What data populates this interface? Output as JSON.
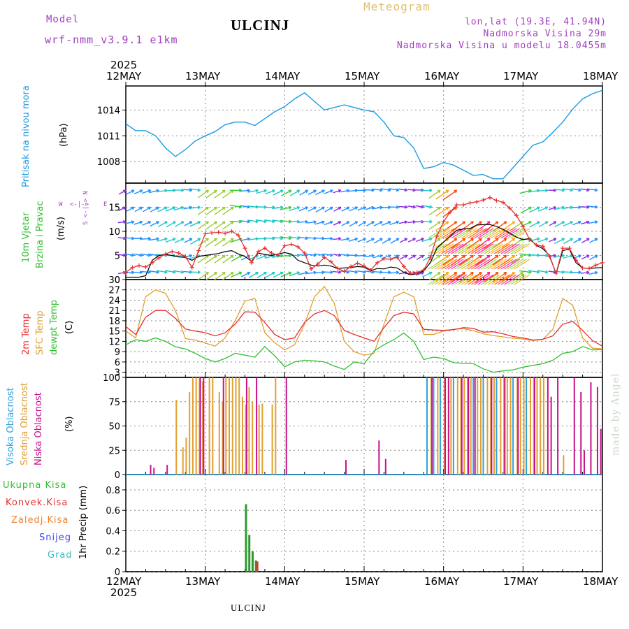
{
  "header": {
    "model_label": "Model",
    "model_name": "wrf-nmm_v3.9.1 e1km",
    "station": "ULCINJ",
    "meteogram": "Meteogram",
    "lonlat": "lon,lat (19.3E, 41.94N)",
    "altitude": "Nadmorska Visina 29m",
    "model_altitude": "Nadmorska Visina u modelu 18.0455m"
  },
  "footer": {
    "station": "ULCINJ"
  },
  "watermark": "made by Angel",
  "wind_legend": {
    "n": "N",
    "s": "S",
    "e": "E",
    "w": "W",
    "arrow_label": "W <-|-> E",
    "ns_label": "S <-|-> N"
  },
  "time_axis": {
    "year": "2025",
    "dates": [
      "12MAY",
      "13MAY",
      "14MAY",
      "15MAY",
      "16MAY",
      "17MAY",
      "18MAY"
    ]
  },
  "colors": {
    "pressure": "#1e9be0",
    "wind_speed": "#e83030",
    "temp2m": "#e83030",
    "sfc_temp": "#e0a030",
    "dewpt": "#30c030",
    "high_cloud": "#30a0e0",
    "mid_cloud": "#e0a030",
    "low_cloud": "#c8108c",
    "total_precip": "#2e9a2e",
    "conv_precip": "#e03030",
    "frozen": "#f08030",
    "snow": "#4040ff",
    "hail": "#30c0c0",
    "header_purple": "#a040c0",
    "header_gold": "#e0c070"
  },
  "panels": {
    "pressure": {
      "ylabel_main": "Pritisak na nivou mora",
      "ylabel_unit": "(hPa)"
    },
    "wind": {
      "ylabel_main": "10m Vjetar",
      "ylabel_sub": "Brzina i Pravac",
      "ylabel_unit": "(m/s)"
    },
    "temp": {
      "ylabel_1": "2m Temp",
      "ylabel_2": "SFC Temp",
      "ylabel_3": "dewpt Temp",
      "ylabel_unit": "(C)"
    },
    "cloud": {
      "ylabel_1": "Visoka Oblacnost",
      "ylabel_2": "Srednja Oblacnost",
      "ylabel_3": "Niska Oblacnost",
      "ylabel_unit": "(%)"
    },
    "precip": {
      "legend": [
        "Ukupna Kisa",
        "Konvek.Kisa",
        "Zaledj.Kisa",
        "Snijeg",
        "Grad"
      ],
      "ylabel": "1hr Precip (mm)"
    }
  },
  "chart_data": [
    {
      "type": "line",
      "name": "pressure",
      "ylabel": "(hPa)",
      "ylim": [
        1005.5,
        1016.8
      ],
      "yticks": [
        1008,
        1011,
        1014
      ],
      "x_hours": [
        0,
        3,
        6,
        9,
        12,
        15,
        18,
        21,
        24,
        27,
        30,
        33,
        36,
        39,
        42,
        45,
        48,
        51,
        54,
        57,
        60,
        63,
        66,
        69,
        72,
        75,
        78,
        81,
        84,
        87,
        90,
        93,
        96,
        99,
        102,
        105,
        108,
        111,
        114,
        117,
        120,
        123,
        126,
        129,
        132,
        135,
        138,
        141,
        144
      ],
      "series": [
        {
          "values": [
            1012.4,
            1011.6,
            1011.6,
            1011.0,
            1009.6,
            1008.6,
            1009.4,
            1010.4,
            1011.0,
            1011.5,
            1012.3,
            1012.6,
            1012.6,
            1012.2,
            1013.0,
            1013.8,
            1014.4,
            1015.3,
            1016.0,
            1015.0,
            1014.0,
            1014.3,
            1014.6,
            1014.3,
            1014.0,
            1013.8,
            1012.6,
            1011.0,
            1010.8,
            1009.6,
            1007.2,
            1007.4,
            1007.9,
            1007.6,
            1007.0,
            1006.4,
            1006.5,
            1006.0,
            1006.0,
            1007.3,
            1008.6,
            1009.9,
            1010.3,
            1011.4,
            1012.6,
            1014.1,
            1015.3,
            1015.9,
            1016.3
          ]
        }
      ]
    },
    {
      "type": "line",
      "name": "wind",
      "ylabel": "(m/s)",
      "ylim": [
        0,
        20
      ],
      "yticks": [
        0,
        5,
        10,
        15
      ],
      "x_hours": [
        0,
        2,
        4,
        6,
        8,
        10,
        12,
        14,
        16,
        18,
        20,
        22,
        24,
        26,
        28,
        30,
        32,
        34,
        36,
        38,
        40,
        42,
        44,
        46,
        48,
        50,
        52,
        54,
        56,
        58,
        60,
        62,
        64,
        66,
        68,
        70,
        72,
        74,
        76,
        78,
        80,
        82,
        84,
        86,
        88,
        90,
        92,
        94,
        96,
        98,
        100,
        102,
        104,
        106,
        108,
        110,
        112,
        114,
        116,
        118,
        120,
        122,
        124,
        126,
        128,
        130,
        132,
        134,
        136,
        138,
        140,
        142,
        144
      ],
      "series": [
        {
          "values": [
            1.5,
            2.5,
            2.9,
            2.6,
            3.5,
            4.5,
            5.3,
            5.8,
            5.5,
            4.8,
            2.5,
            6.0,
            9.5,
            9.7,
            9.8,
            9.6,
            10.0,
            9.2,
            6.5,
            3.5,
            5.8,
            6.5,
            5.5,
            5.0,
            7.0,
            7.3,
            6.8,
            5.5,
            2.2,
            3.2,
            4.6,
            3.7,
            2.3,
            1.7,
            2.7,
            3.4,
            2.8,
            2.0,
            3.5,
            4.3,
            4.2,
            4.6,
            2.7,
            1.3,
            1.5,
            2.0,
            4.5,
            9.0,
            12.0,
            14.0,
            15.5,
            15.5,
            15.9,
            16.1,
            16.5,
            17.0,
            16.4,
            16.0,
            14.8,
            13.3,
            11.0,
            8.3,
            7.2,
            6.9,
            4.8,
            1.3,
            6.5,
            6.5,
            4.0,
            2.4,
            2.3,
            3.0,
            3.5
          ]
        },
        {
          "values": [
            0.5,
            0.5,
            0.5,
            0.8,
            4.0,
            5.0,
            5.2,
            5.0,
            4.7,
            4.6,
            4.0,
            4.8,
            5.0,
            5.2,
            5.4,
            5.8,
            6.0,
            5.3,
            4.8,
            3.8,
            5.5,
            5.2,
            5.0,
            5.3,
            5.6,
            5.3,
            4.0,
            3.5,
            3.0,
            2.8,
            3.0,
            2.8,
            2.3,
            2.4,
            2.5,
            2.7,
            2.6,
            1.8,
            2.3,
            2.2,
            2.6,
            2.4,
            1.5,
            1.0,
            1.2,
            1.8,
            3.5,
            6.5,
            7.8,
            9.0,
            10.2,
            10.5,
            10.6,
            11.3,
            11.4,
            11.4,
            11.0,
            10.4,
            9.6,
            8.8,
            8.3,
            8.5,
            7.1,
            6.4,
            5.0,
            1.2,
            6.0,
            6.3,
            3.5,
            2.4,
            2.3,
            2.4,
            2.5
          ]
        }
      ]
    },
    {
      "type": "line",
      "name": "temperature",
      "ylabel": "(C)",
      "ylim": [
        1.5,
        30
      ],
      "yticks": [
        3,
        6,
        9,
        12,
        15,
        18,
        21,
        24,
        27,
        30
      ],
      "x_hours": [
        0,
        3,
        6,
        9,
        12,
        15,
        18,
        21,
        24,
        27,
        30,
        33,
        36,
        39,
        42,
        45,
        48,
        51,
        54,
        57,
        60,
        63,
        66,
        69,
        72,
        75,
        78,
        81,
        84,
        87,
        90,
        93,
        96,
        99,
        102,
        105,
        108,
        111,
        114,
        117,
        120,
        123,
        126,
        129,
        132,
        135,
        138,
        141,
        144
      ],
      "series": [
        {
          "values": [
            16.3,
            14.0,
            19.0,
            21.0,
            21.0,
            18.7,
            15.6,
            15.0,
            14.5,
            13.6,
            14.5,
            17.0,
            20.6,
            20.5,
            17.5,
            14.0,
            12.5,
            13.0,
            17.5,
            20.0,
            21.0,
            19.5,
            15.2,
            14.0,
            13.0,
            12.0,
            16.0,
            19.5,
            20.5,
            20.0,
            15.5,
            15.3,
            15.2,
            15.4,
            16.0,
            15.8,
            14.7,
            14.8,
            14.2,
            13.4,
            13.0,
            12.4,
            12.6,
            13.6,
            17.0,
            17.8,
            15.2,
            12.2,
            10.6
          ]
        },
        {
          "values": [
            15.0,
            13.0,
            25.0,
            27.0,
            26.0,
            21.0,
            12.8,
            12.4,
            11.5,
            10.6,
            13.0,
            18.0,
            23.7,
            24.5,
            14.5,
            11.6,
            9.5,
            11.0,
            17.0,
            25.0,
            28.0,
            23.0,
            12.0,
            9.0,
            8.0,
            8.5,
            17.0,
            25.0,
            26.3,
            25.0,
            14.0,
            14.0,
            15.0,
            15.5,
            15.7,
            15.1,
            14.2,
            13.7,
            13.3,
            12.9,
            12.7,
            12.2,
            12.6,
            15.5,
            24.5,
            22.5,
            13.0,
            10.0,
            9.8
          ]
        },
        {
          "values": [
            11.0,
            12.5,
            12.0,
            13.0,
            12.0,
            10.4,
            9.8,
            8.5,
            7.0,
            6.0,
            7.0,
            8.5,
            8.0,
            7.4,
            10.5,
            7.8,
            4.6,
            6.0,
            6.5,
            6.3,
            6.0,
            4.8,
            3.8,
            6.0,
            5.5,
            9.2,
            11.0,
            12.5,
            14.4,
            12.0,
            6.7,
            7.4,
            7.0,
            5.8,
            5.6,
            5.5,
            4.0,
            3.0,
            3.4,
            3.7,
            4.5,
            5.0,
            5.5,
            6.5,
            8.5,
            9.0,
            10.5,
            9.5,
            9.6
          ]
        }
      ]
    },
    {
      "type": "bar",
      "name": "cloud",
      "ylabel": "(%)",
      "ylim": [
        0,
        100
      ],
      "yticks": [
        0,
        25,
        50,
        75,
        100
      ],
      "series": [
        {
          "name": "Visoka Oblacnost",
          "bars": [
            [
              91,
              100
            ],
            [
              93,
              100
            ],
            [
              95,
              100
            ],
            [
              99,
              100
            ],
            [
              105,
              100
            ],
            [
              108,
              100
            ],
            [
              112,
              100
            ],
            [
              117,
              100
            ],
            [
              121,
              100
            ]
          ]
        },
        {
          "name": "Srednja Oblacnost",
          "bars": [
            [
              15,
              77
            ],
            [
              17,
              28
            ],
            [
              18,
              38
            ],
            [
              19,
              85
            ],
            [
              20,
              100
            ],
            [
              21,
              100
            ],
            [
              22,
              100
            ],
            [
              23,
              96
            ],
            [
              25,
              100
            ],
            [
              26,
              100
            ],
            [
              28,
              85
            ],
            [
              29,
              75
            ],
            [
              30,
              100
            ],
            [
              31,
              100
            ],
            [
              32,
              100
            ],
            [
              33,
              100
            ],
            [
              34,
              100
            ],
            [
              35,
              80
            ],
            [
              36,
              72
            ],
            [
              37,
              90
            ],
            [
              38,
              75
            ],
            [
              40,
              72
            ],
            [
              41,
              73
            ],
            [
              44,
              72
            ],
            [
              45,
              100
            ],
            [
              92,
              100
            ],
            [
              94,
              100
            ],
            [
              96,
              100
            ],
            [
              98,
              100
            ],
            [
              100,
              100
            ],
            [
              101,
              100
            ],
            [
              102,
              100
            ],
            [
              103,
              100
            ],
            [
              104,
              100
            ],
            [
              106,
              100
            ],
            [
              107,
              100
            ],
            [
              109,
              100
            ],
            [
              110,
              100
            ],
            [
              111,
              100
            ],
            [
              113,
              100
            ],
            [
              114,
              100
            ],
            [
              115,
              100
            ],
            [
              116,
              100
            ],
            [
              118,
              100
            ],
            [
              119,
              100
            ],
            [
              120,
              100
            ],
            [
              122,
              100
            ],
            [
              123,
              100
            ],
            [
              124,
              100
            ],
            [
              125,
              100
            ],
            [
              126,
              100
            ],
            [
              132,
              20
            ]
          ]
        },
        {
          "name": "Niska Oblacnost",
          "bars": [
            [
              7,
              10
            ],
            [
              8,
              7
            ],
            [
              12,
              10
            ],
            [
              22,
              100
            ],
            [
              23,
              100
            ],
            [
              29,
              100
            ],
            [
              36,
              100
            ],
            [
              39,
              100
            ],
            [
              48,
              100
            ],
            [
              66,
              15
            ],
            [
              76,
              35
            ],
            [
              78,
              16
            ],
            [
              92,
              100
            ],
            [
              96,
              100
            ],
            [
              97,
              100
            ],
            [
              101,
              100
            ],
            [
              103,
              100
            ],
            [
              105,
              100
            ],
            [
              110,
              100
            ],
            [
              114,
              100
            ],
            [
              118,
              100
            ],
            [
              123,
              100
            ],
            [
              127,
              100
            ],
            [
              128,
              80
            ],
            [
              130,
              100
            ],
            [
              135,
              100
            ],
            [
              137,
              85
            ],
            [
              138,
              25
            ],
            [
              140,
              95
            ],
            [
              142,
              90
            ],
            [
              143,
              47
            ]
          ]
        }
      ]
    },
    {
      "type": "bar",
      "name": "precipitation",
      "ylabel": "1hr Precip (mm)",
      "ylim": [
        0,
        0.95
      ],
      "yticks": [
        0,
        0.2,
        0.4,
        0.6,
        0.8
      ],
      "series": [
        {
          "name": "Ukupna Kisa",
          "bars": [
            [
              36,
              0.66
            ],
            [
              37,
              0.36
            ],
            [
              38,
              0.2
            ],
            [
              39,
              0.11
            ]
          ]
        },
        {
          "name": "Konvek.Kisa",
          "bars": [
            [
              39,
              0.1
            ]
          ]
        }
      ]
    }
  ]
}
